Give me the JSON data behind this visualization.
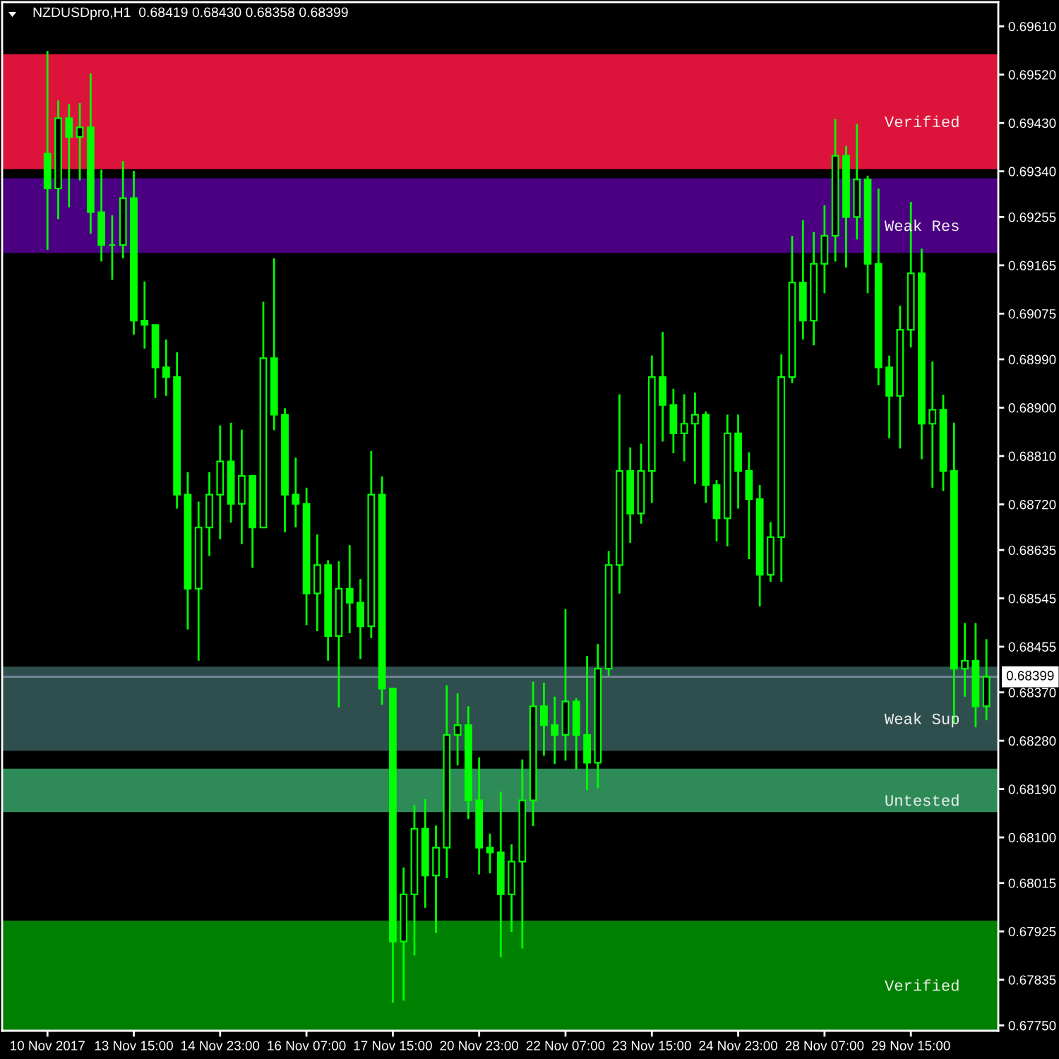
{
  "chart_data": {
    "type": "candlestick",
    "title": "NZDUSDpro,H1  0.68419 0.68430 0.68358 0.68399",
    "color": "#00ff00",
    "categories": [
      "10 Nov 2017",
      null,
      null,
      null,
      null,
      null,
      null,
      null,
      "13 Nov 15:00",
      null,
      null,
      null,
      null,
      null,
      null,
      null,
      "14 Nov 23:00",
      null,
      null,
      null,
      null,
      null,
      null,
      null,
      "16 Nov 07:00",
      null,
      null,
      null,
      null,
      null,
      null,
      null,
      "17 Nov 15:00",
      null,
      null,
      null,
      null,
      null,
      null,
      null,
      "20 Nov 23:00",
      null,
      null,
      null,
      null,
      null,
      null,
      null,
      "22 Nov 07:00",
      null,
      null,
      null,
      null,
      null,
      null,
      null,
      "23 Nov 15:00",
      null,
      null,
      null,
      null,
      null,
      null,
      null,
      "24 Nov 23:00",
      null,
      null,
      null,
      null,
      null,
      null,
      null,
      "28 Nov 07:00",
      null,
      null,
      null,
      null,
      null,
      null,
      null,
      "29 Nov 15:00",
      null,
      null,
      null,
      null,
      null,
      null,
      null
    ],
    "ohlc": [
      [
        0.69373,
        0.69564,
        0.69194,
        0.69308
      ],
      [
        0.69308,
        0.69472,
        0.69251,
        0.69439
      ],
      [
        0.69439,
        0.69465,
        0.69273,
        0.69404
      ],
      [
        0.69404,
        0.69467,
        0.69323,
        0.69422
      ],
      [
        0.69422,
        0.69522,
        0.69224,
        0.69264
      ],
      [
        0.69264,
        0.69343,
        0.69172,
        0.69203
      ],
      [
        0.69203,
        0.69258,
        0.69138,
        0.69203
      ],
      [
        0.69203,
        0.69359,
        0.69178,
        0.6929
      ],
      [
        0.6929,
        0.69341,
        0.69036,
        0.69062
      ],
      [
        0.69062,
        0.69135,
        0.6901,
        0.69054
      ],
      [
        0.69054,
        0.69055,
        0.68918,
        0.68975
      ],
      [
        0.68975,
        0.69027,
        0.68922,
        0.68957
      ],
      [
        0.68957,
        0.69003,
        0.68712,
        0.68738
      ],
      [
        0.68738,
        0.6878,
        0.68487,
        0.68563
      ],
      [
        0.68563,
        0.68725,
        0.68429,
        0.68677
      ],
      [
        0.68677,
        0.6878,
        0.68624,
        0.68738
      ],
      [
        0.68738,
        0.68867,
        0.68655,
        0.688
      ],
      [
        0.688,
        0.68872,
        0.68686,
        0.68721
      ],
      [
        0.68721,
        0.68859,
        0.68646,
        0.68773
      ],
      [
        0.68773,
        0.68775,
        0.68602,
        0.68677
      ],
      [
        0.68677,
        0.69097,
        0.68677,
        0.68992
      ],
      [
        0.68992,
        0.69178,
        0.68858,
        0.68887
      ],
      [
        0.68887,
        0.68899,
        0.68668,
        0.68738
      ],
      [
        0.68738,
        0.68807,
        0.68677,
        0.68721
      ],
      [
        0.68721,
        0.68751,
        0.68495,
        0.68554
      ],
      [
        0.68554,
        0.68664,
        0.68484,
        0.68607
      ],
      [
        0.68607,
        0.68616,
        0.68429,
        0.68475
      ],
      [
        0.68475,
        0.68614,
        0.68342,
        0.68563
      ],
      [
        0.68563,
        0.68644,
        0.6848,
        0.68537
      ],
      [
        0.68537,
        0.68581,
        0.68432,
        0.68493
      ],
      [
        0.68493,
        0.68819,
        0.68471,
        0.68738
      ],
      [
        0.68738,
        0.68772,
        0.68347,
        0.68377
      ],
      [
        0.68377,
        0.68377,
        0.67792,
        0.67906
      ],
      [
        0.67906,
        0.68044,
        0.67796,
        0.67994
      ],
      [
        0.67994,
        0.6816,
        0.6788,
        0.68116
      ],
      [
        0.68116,
        0.68171,
        0.67969,
        0.68029
      ],
      [
        0.68029,
        0.68122,
        0.67922,
        0.68081
      ],
      [
        0.68081,
        0.68383,
        0.68024,
        0.68291
      ],
      [
        0.68291,
        0.68368,
        0.68234,
        0.68309
      ],
      [
        0.68309,
        0.68344,
        0.68134,
        0.68169
      ],
      [
        0.68169,
        0.68249,
        0.68031,
        0.68081
      ],
      [
        0.68081,
        0.68107,
        0.68033,
        0.68072
      ],
      [
        0.68072,
        0.68185,
        0.67877,
        0.67994
      ],
      [
        0.67994,
        0.68087,
        0.67924,
        0.68055
      ],
      [
        0.68055,
        0.68245,
        0.67893,
        0.68169
      ],
      [
        0.68169,
        0.6839,
        0.68121,
        0.68344
      ],
      [
        0.68344,
        0.68388,
        0.68252,
        0.68309
      ],
      [
        0.68309,
        0.68362,
        0.68237,
        0.68291
      ],
      [
        0.68291,
        0.68525,
        0.68243,
        0.68353
      ],
      [
        0.68353,
        0.68359,
        0.68226,
        0.68291
      ],
      [
        0.68291,
        0.68438,
        0.68188,
        0.68239
      ],
      [
        0.68239,
        0.6846,
        0.68192,
        0.68414
      ],
      [
        0.68414,
        0.68633,
        0.68401,
        0.68607
      ],
      [
        0.68607,
        0.68925,
        0.68554,
        0.68782
      ],
      [
        0.68782,
        0.68826,
        0.68648,
        0.68703
      ],
      [
        0.68703,
        0.68833,
        0.68684,
        0.68782
      ],
      [
        0.68782,
        0.68997,
        0.68723,
        0.68957
      ],
      [
        0.68957,
        0.69041,
        0.68837,
        0.68905
      ],
      [
        0.68905,
        0.68935,
        0.68815,
        0.68852
      ],
      [
        0.68852,
        0.68925,
        0.688,
        0.6887
      ],
      [
        0.6887,
        0.68928,
        0.68758,
        0.68887
      ],
      [
        0.68887,
        0.68893,
        0.68723,
        0.68756
      ],
      [
        0.68756,
        0.68765,
        0.68651,
        0.68694
      ],
      [
        0.68694,
        0.68887,
        0.68642,
        0.68852
      ],
      [
        0.68852,
        0.68887,
        0.68712,
        0.68782
      ],
      [
        0.68782,
        0.68817,
        0.68618,
        0.6873
      ],
      [
        0.6873,
        0.68756,
        0.6853,
        0.68589
      ],
      [
        0.68589,
        0.68687,
        0.68576,
        0.68659
      ],
      [
        0.68659,
        0.68999,
        0.68576,
        0.68957
      ],
      [
        0.68957,
        0.6922,
        0.68946,
        0.69133
      ],
      [
        0.69133,
        0.69249,
        0.69027,
        0.69062
      ],
      [
        0.69062,
        0.69227,
        0.69016,
        0.69168
      ],
      [
        0.69168,
        0.69277,
        0.69113,
        0.6922
      ],
      [
        0.6922,
        0.69437,
        0.69172,
        0.69369
      ],
      [
        0.69369,
        0.69387,
        0.69161,
        0.69255
      ],
      [
        0.69255,
        0.69428,
        0.69213,
        0.69325
      ],
      [
        0.69325,
        0.69332,
        0.69113,
        0.69168
      ],
      [
        0.69168,
        0.69308,
        0.68942,
        0.68975
      ],
      [
        0.68975,
        0.68997,
        0.68843,
        0.68922
      ],
      [
        0.68922,
        0.6909,
        0.68824,
        0.69045
      ],
      [
        0.69045,
        0.69283,
        0.69012,
        0.6915
      ],
      [
        0.6915,
        0.69196,
        0.68804,
        0.6887
      ],
      [
        0.6887,
        0.68986,
        0.68751,
        0.68896
      ],
      [
        0.68896,
        0.68924,
        0.68745,
        0.68782
      ],
      [
        0.68782,
        0.68872,
        0.68312,
        0.68414
      ],
      [
        0.68414,
        0.68499,
        0.68362,
        0.68429
      ],
      [
        0.68429,
        0.68499,
        0.68305,
        0.68344
      ],
      [
        0.68344,
        0.68469,
        0.68318,
        0.68399
      ]
    ],
    "bands": [
      {
        "axis": "y",
        "from": 0.69344,
        "to": 0.69558,
        "label": "Verified",
        "color": "#dc143c"
      },
      {
        "axis": "y",
        "from": 0.69188,
        "to": 0.69327,
        "label": "Weak Res",
        "color": "#4b0082"
      },
      {
        "axis": "y",
        "from": 0.68261,
        "to": 0.68418,
        "label": "Weak Sup",
        "color": "#2f4f4f"
      },
      {
        "axis": "y",
        "from": 0.68147,
        "to": 0.68228,
        "label": "Untested",
        "color": "#2e8b57"
      },
      {
        "axis": "y",
        "from": 0.67741,
        "to": 0.67945,
        "label": "Verified",
        "color": "#008000"
      }
    ],
    "ylim": [
      0.6774,
      0.69655
    ],
    "yticks": [
      {
        "value": 0.6961,
        "label": "0.69610"
      },
      {
        "value": 0.6952,
        "label": "0.69520"
      },
      {
        "value": 0.6943,
        "label": "0.69430"
      },
      {
        "value": 0.6934,
        "label": "0.69340"
      },
      0.69255,
      0.69165,
      0.69075,
      {
        "value": 0.6899,
        "label": "0.68990"
      },
      {
        "value": 0.689,
        "label": "0.68900"
      },
      {
        "value": 0.6881,
        "label": "0.68810"
      },
      {
        "value": 0.6872,
        "label": "0.68720"
      },
      0.68635,
      0.68545,
      0.68455,
      {
        "value": 0.6837,
        "label": "0.68370"
      },
      {
        "value": 0.6828,
        "label": "0.68280"
      },
      {
        "value": 0.6819,
        "label": "0.68190"
      },
      {
        "value": 0.681,
        "label": "0.68100"
      },
      0.68015,
      0.67925,
      0.67835,
      {
        "value": 0.6775,
        "label": "0.67750"
      }
    ],
    "ref_lines": [
      {
        "axis": "y",
        "value": 0.68399,
        "label": "0.68399",
        "color": "#778899"
      }
    ]
  }
}
